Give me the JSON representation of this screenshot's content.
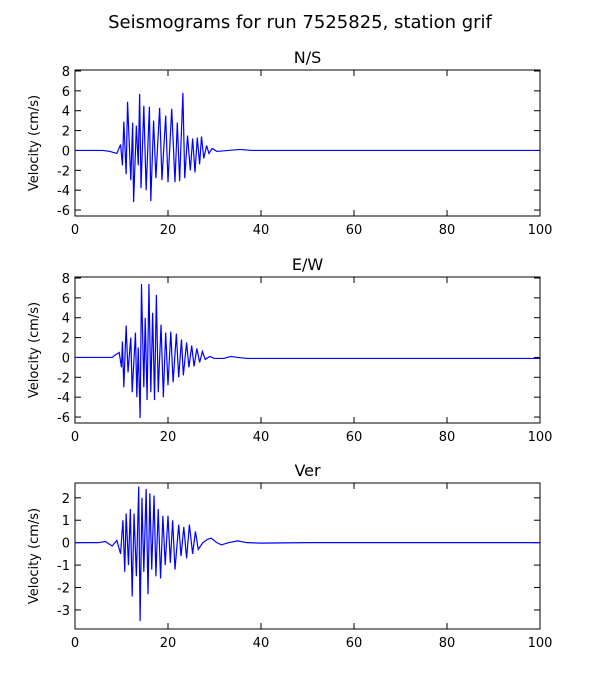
{
  "title": "Seismograms for run 7525825, station grif",
  "chart_data": [
    {
      "type": "line",
      "title": "N/S",
      "y_label": "Velocity (cm/s)",
      "x": [
        0,
        6,
        7.5,
        9,
        9.8,
        10.2,
        10.5,
        11,
        11.3,
        12,
        12.4,
        12.6,
        13.2,
        13.6,
        13.9,
        14.2,
        14.8,
        15.3,
        16,
        16.3,
        16.9,
        17.4,
        18.2,
        18.7,
        19.5,
        20,
        20.8,
        21.5,
        22,
        22.5,
        23.2,
        23.6,
        24.2,
        24.8,
        25.3,
        25.8,
        26.3,
        26.8,
        27.2,
        27.7,
        28.3,
        28.8,
        29.5,
        30.5,
        33,
        35.5,
        38,
        100
      ],
      "series": [
        {
          "color": "#0000ff",
          "values": [
            0,
            0,
            -0.1,
            -0.3,
            0.6,
            -1.5,
            2.9,
            -2.4,
            4.9,
            -3,
            2.8,
            -5.2,
            2.5,
            -1.5,
            5.7,
            -3.8,
            4.5,
            -4,
            4.4,
            -5.1,
            3,
            -2.8,
            4.3,
            -3,
            3.5,
            -3.2,
            4.2,
            -3.2,
            2.8,
            -3.1,
            5.8,
            -2.8,
            1.5,
            -2,
            1.2,
            -2.2,
            1.3,
            -1.4,
            1.4,
            -0.8,
            0.5,
            -0.3,
            0.2,
            -0.1,
            0,
            0.1,
            0,
            0
          ]
        }
      ],
      "xlim": [
        0,
        100
      ],
      "xticks": [
        0,
        20,
        40,
        60,
        80,
        100
      ],
      "ylim": [
        -6.6,
        8.1
      ],
      "yticks": [
        -6,
        -4,
        -2,
        0,
        2,
        4,
        6,
        8
      ]
    },
    {
      "type": "line",
      "title": "E/W",
      "y_label": "Velocity (cm/s)",
      "x": [
        0,
        8,
        8.5,
        9.5,
        10,
        10.2,
        10.5,
        11,
        11.4,
        12,
        12.3,
        13,
        13.3,
        13.6,
        14,
        14.3,
        14.8,
        15.1,
        15.5,
        15.9,
        16.3,
        16.7,
        17.1,
        17.5,
        17.9,
        18.5,
        19,
        19.5,
        20,
        20.6,
        21.1,
        21.8,
        22.3,
        22.9,
        23.3,
        24,
        24.5,
        25.1,
        25.6,
        26.2,
        26.8,
        27.4,
        28,
        29,
        30,
        32,
        33.5,
        35,
        37,
        100
      ],
      "series": [
        {
          "color": "#0000ff",
          "values": [
            0,
            0,
            0.2,
            0.5,
            -1,
            1.6,
            -3,
            3.2,
            -1.5,
            2,
            -3.5,
            2.5,
            -4,
            1,
            -6.1,
            7.4,
            -3,
            4,
            -4.3,
            7.4,
            -3.5,
            4.5,
            -4.3,
            6.3,
            -3.5,
            3.3,
            -4,
            2.5,
            -2.8,
            2.6,
            -2.5,
            2.4,
            -2,
            1.8,
            -1.8,
            1.5,
            -1,
            1.2,
            -0.9,
            0.9,
            -0.5,
            0.6,
            -0.2,
            0.1,
            -0.1,
            -0.1,
            0.1,
            0,
            -0.1,
            -0.1
          ]
        }
      ],
      "xlim": [
        0,
        100
      ],
      "xticks": [
        0,
        20,
        40,
        60,
        80,
        100
      ],
      "ylim": [
        -6.6,
        8.1
      ],
      "yticks": [
        -6,
        -4,
        -2,
        0,
        2,
        4,
        6,
        8
      ]
    },
    {
      "type": "line",
      "title": "Ver",
      "y_label": "Velocity (cm/s)",
      "x": [
        0,
        5,
        6.5,
        8,
        9,
        9.8,
        10.3,
        10.7,
        11,
        11.5,
        11.9,
        12.3,
        12.7,
        13.2,
        13.7,
        14,
        14.4,
        14.8,
        15.3,
        15.7,
        16.1,
        16.5,
        17,
        17.4,
        17.9,
        18.4,
        18.9,
        19.4,
        20,
        20.5,
        21,
        21.5,
        22.3,
        22.8,
        23.4,
        24,
        24.6,
        25.3,
        25.9,
        26.5,
        27.5,
        28.5,
        29.3,
        30.5,
        31.5,
        33,
        35,
        37,
        40,
        50,
        100
      ],
      "series": [
        {
          "color": "#0000ff",
          "values": [
            0,
            0,
            0.05,
            -0.15,
            0.1,
            -0.5,
            1,
            -1.3,
            1.3,
            -1,
            1.5,
            -2.4,
            1.3,
            -1.5,
            2.5,
            -3.5,
            2,
            -1.3,
            2.4,
            -2.3,
            2.2,
            -1.2,
            2.1,
            -1.5,
            1.5,
            -1.6,
            1.2,
            -1,
            1.2,
            -0.9,
            1,
            -1.2,
            0.8,
            -0.6,
            0.7,
            -0.7,
            0.8,
            -0.5,
            0.5,
            -0.3,
            0,
            0.15,
            0.2,
            0,
            -0.1,
            0,
            0.08,
            0,
            -0.02,
            0,
            0
          ]
        }
      ],
      "xlim": [
        0,
        100
      ],
      "xticks": [
        0,
        20,
        40,
        60,
        80,
        100
      ],
      "ylim": [
        -3.85,
        2.66
      ],
      "yticks": [
        -3,
        -2,
        -1,
        0,
        1,
        2
      ]
    }
  ]
}
